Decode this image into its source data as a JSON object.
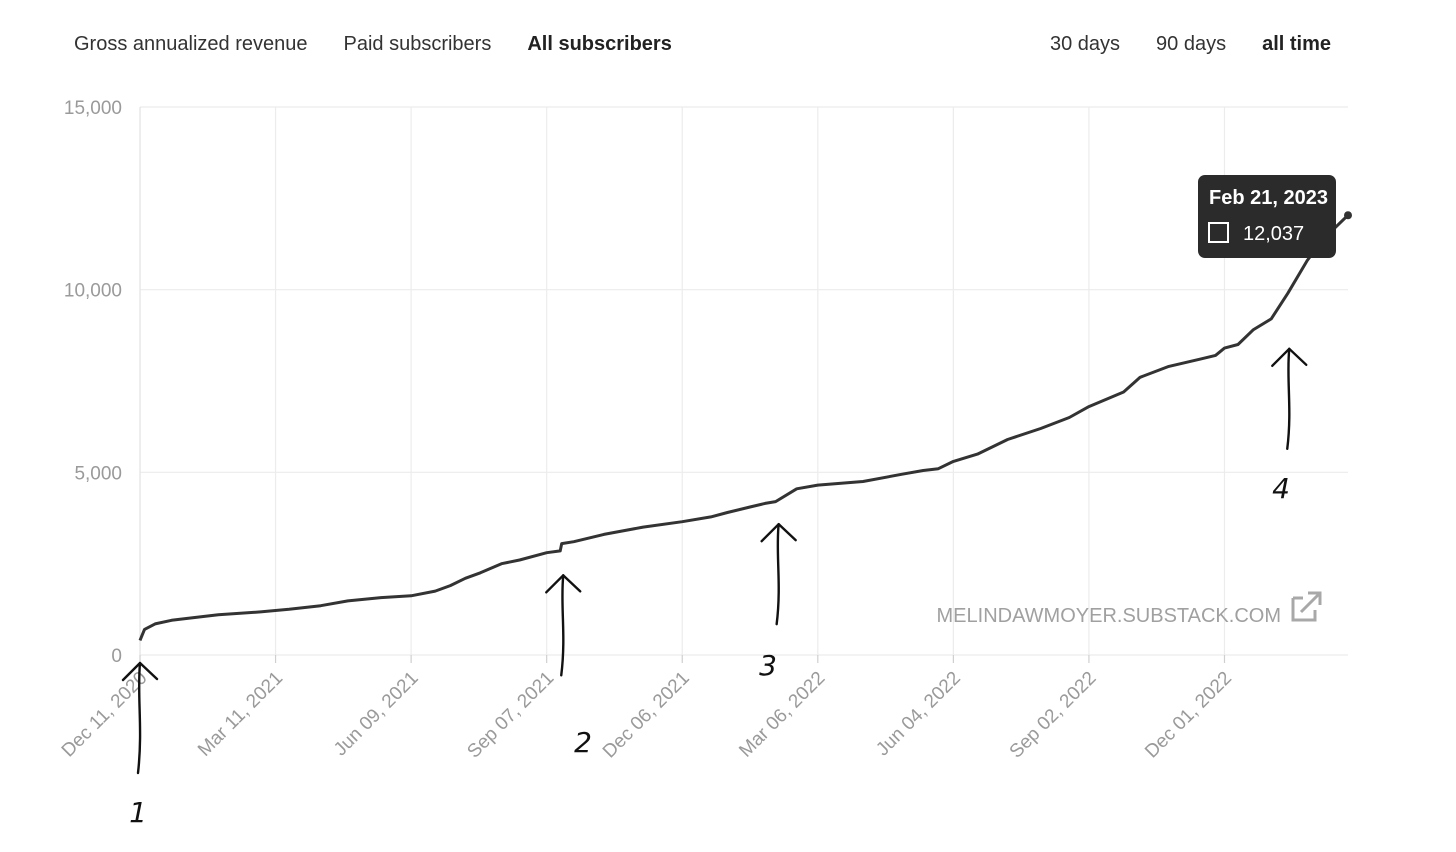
{
  "metric_tabs": [
    {
      "label": "Gross annualized revenue",
      "active": false
    },
    {
      "label": "Paid subscribers",
      "active": false
    },
    {
      "label": "All subscribers",
      "active": true
    }
  ],
  "range_tabs": [
    {
      "label": "30 days",
      "active": false
    },
    {
      "label": "90 days",
      "active": false
    },
    {
      "label": "all time",
      "active": true
    }
  ],
  "watermark": {
    "text": "MELINDAWMOYER.SUBSTACK.COM",
    "icon": "external-link-icon"
  },
  "tooltip": {
    "date": "Feb 21, 2023",
    "value": "12,037",
    "swatch_color": "#333333"
  },
  "annotations": [
    "1",
    "2",
    "3",
    "4"
  ],
  "chart_data": {
    "type": "line",
    "title": "",
    "xlabel": "",
    "ylabel": "",
    "ylim": [
      0,
      15000
    ],
    "xlim": [
      "2020-12-11",
      "2023-02-21"
    ],
    "y_ticks": [
      "0",
      "5,000",
      "10,000",
      "15,000"
    ],
    "x_ticks": [
      "Dec 11, 2020",
      "Mar 11, 2021",
      "Jun 09, 2021",
      "Sep 07, 2021",
      "Dec 06, 2021",
      "Mar 06, 2022",
      "Jun 04, 2022",
      "Sep 02, 2022",
      "Dec 01, 2022"
    ],
    "grid": true,
    "line_color": "#333333",
    "series": [
      {
        "x": [
          "2020-12-11",
          "2020-12-14",
          "2020-12-21",
          "2021-01-01",
          "2021-01-15",
          "2021-02-01",
          "2021-03-01",
          "2021-03-20",
          "2021-04-10",
          "2021-04-28",
          "2021-05-20",
          "2021-06-09",
          "2021-06-25",
          "2021-07-05",
          "2021-07-15",
          "2021-07-25",
          "2021-08-08",
          "2021-08-20",
          "2021-09-07",
          "2021-09-16",
          "2021-09-17",
          "2021-09-25",
          "2021-10-15",
          "2021-11-10",
          "2021-12-06",
          "2021-12-25",
          "2022-01-05",
          "2022-01-20",
          "2022-01-30",
          "2022-02-06",
          "2022-02-20",
          "2022-03-06",
          "2022-04-05",
          "2022-05-01",
          "2022-05-15",
          "2022-05-25",
          "2022-06-04",
          "2022-06-20",
          "2022-07-10",
          "2022-08-01",
          "2022-08-20",
          "2022-09-02",
          "2022-09-25",
          "2022-10-06",
          "2022-10-25",
          "2022-11-15",
          "2022-11-25",
          "2022-12-01",
          "2022-12-10",
          "2022-12-20",
          "2023-01-01",
          "2023-01-12",
          "2023-01-25",
          "2023-02-05",
          "2023-02-21"
        ],
        "y": [
          400,
          700,
          850,
          950,
          1020,
          1100,
          1180,
          1250,
          1350,
          1480,
          1570,
          1620,
          1750,
          1900,
          2100,
          2250,
          2500,
          2600,
          2800,
          2850,
          3050,
          3100,
          3300,
          3500,
          3650,
          3780,
          3900,
          4050,
          4150,
          4200,
          4550,
          4650,
          4750,
          4950,
          5050,
          5100,
          5300,
          5500,
          5900,
          6200,
          6500,
          6800,
          7200,
          7600,
          7900,
          8100,
          8200,
          8400,
          8500,
          8900,
          9200,
          9900,
          10800,
          11400,
          12037
        ]
      }
    ]
  }
}
